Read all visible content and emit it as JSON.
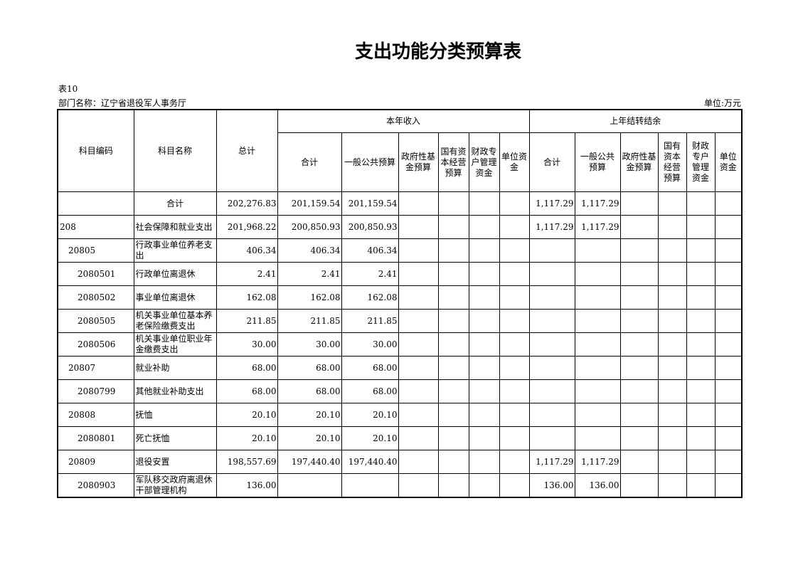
{
  "title": "支出功能分类预算表",
  "table_no": "表10",
  "department": "部门名称：辽宁省退役军人事务厅",
  "unit": "单位:万元",
  "headers": {
    "code": "科目编码",
    "name": "科目名称",
    "total": "总计",
    "current": "本年收入",
    "carry": "上年结转结余",
    "current_cols": [
      "合计",
      "一般公共预算",
      "政府性基金预算",
      "国有资本经营预算",
      "财政专户管理资金",
      "单位资金"
    ],
    "carry_cols": [
      "合计",
      "一般公共预算",
      "政府性基金预算",
      "国有资本经营预算",
      "财政专户管理资金",
      "单位资金"
    ]
  },
  "rows": [
    {
      "code": "",
      "name": "合计",
      "total": "202,276.83",
      "cur": [
        "201,159.54",
        "201,159.54",
        "",
        "",
        "",
        ""
      ],
      "car": [
        "1,117.29",
        "1,117.29",
        "",
        "",
        "",
        ""
      ]
    },
    {
      "code": "208",
      "name": "社会保障和就业支出",
      "total": "201,968.22",
      "cur": [
        "200,850.93",
        "200,850.93",
        "",
        "",
        "",
        ""
      ],
      "car": [
        "1,117.29",
        "1,117.29",
        "",
        "",
        "",
        ""
      ]
    },
    {
      "code": "20805",
      "name": "行政事业单位养老支出",
      "total": "406.34",
      "cur": [
        "406.34",
        "406.34",
        "",
        "",
        "",
        ""
      ],
      "car": [
        "",
        "",
        "",
        "",
        "",
        ""
      ]
    },
    {
      "code": "2080501",
      "name": "行政单位离退休",
      "total": "2.41",
      "cur": [
        "2.41",
        "2.41",
        "",
        "",
        "",
        ""
      ],
      "car": [
        "",
        "",
        "",
        "",
        "",
        ""
      ]
    },
    {
      "code": "2080502",
      "name": "事业单位离退休",
      "total": "162.08",
      "cur": [
        "162.08",
        "162.08",
        "",
        "",
        "",
        ""
      ],
      "car": [
        "",
        "",
        "",
        "",
        "",
        ""
      ]
    },
    {
      "code": "2080505",
      "name": "机关事业单位基本养老保险缴费支出",
      "total": "211.85",
      "cur": [
        "211.85",
        "211.85",
        "",
        "",
        "",
        ""
      ],
      "car": [
        "",
        "",
        "",
        "",
        "",
        ""
      ]
    },
    {
      "code": "2080506",
      "name": "机关事业单位职业年金缴费支出",
      "total": "30.00",
      "cur": [
        "30.00",
        "30.00",
        "",
        "",
        "",
        ""
      ],
      "car": [
        "",
        "",
        "",
        "",
        "",
        ""
      ]
    },
    {
      "code": "20807",
      "name": "就业补助",
      "total": "68.00",
      "cur": [
        "68.00",
        "68.00",
        "",
        "",
        "",
        ""
      ],
      "car": [
        "",
        "",
        "",
        "",
        "",
        ""
      ]
    },
    {
      "code": "2080799",
      "name": "其他就业补助支出",
      "total": "68.00",
      "cur": [
        "68.00",
        "68.00",
        "",
        "",
        "",
        ""
      ],
      "car": [
        "",
        "",
        "",
        "",
        "",
        ""
      ]
    },
    {
      "code": "20808",
      "name": "抚恤",
      "total": "20.10",
      "cur": [
        "20.10",
        "20.10",
        "",
        "",
        "",
        ""
      ],
      "car": [
        "",
        "",
        "",
        "",
        "",
        ""
      ]
    },
    {
      "code": "2080801",
      "name": "死亡抚恤",
      "total": "20.10",
      "cur": [
        "20.10",
        "20.10",
        "",
        "",
        "",
        ""
      ],
      "car": [
        "",
        "",
        "",
        "",
        "",
        ""
      ]
    },
    {
      "code": "20809",
      "name": "退役安置",
      "total": "198,557.69",
      "cur": [
        "197,440.40",
        "197,440.40",
        "",
        "",
        "",
        ""
      ],
      "car": [
        "1,117.29",
        "1,117.29",
        "",
        "",
        "",
        ""
      ]
    },
    {
      "code": "2080903",
      "name": "军队移交政府离退休干部管理机构",
      "total": "136.00",
      "cur": [
        "",
        "",
        "",
        "",
        "",
        ""
      ],
      "car": [
        "136.00",
        "136.00",
        "",
        "",
        "",
        ""
      ]
    }
  ]
}
